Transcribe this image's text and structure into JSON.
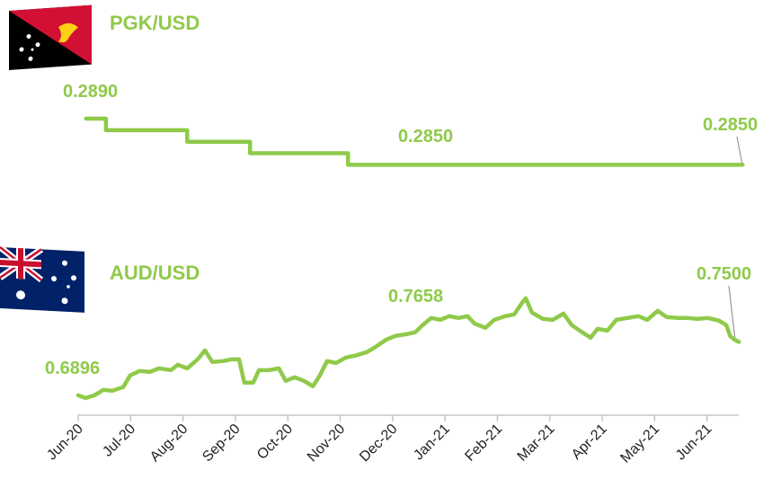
{
  "chart_data": [
    {
      "type": "line",
      "title": "PGK/USD",
      "xlim": [
        0,
        13
      ],
      "ylim": [
        0.2837,
        0.2915
      ],
      "annotations": [
        "0.2890",
        "0.2850",
        "0.2850"
      ],
      "series": [
        {
          "name": "PGK/USD",
          "color": "#8fca4a",
          "x": [
            0.15,
            0.53,
            0.53,
            2.08,
            2.08,
            3.28,
            3.28,
            5.15,
            5.15,
            12.68
          ],
          "values": [
            0.289,
            0.289,
            0.288,
            0.288,
            0.287,
            0.287,
            0.286,
            0.286,
            0.285,
            0.285
          ]
        }
      ]
    },
    {
      "type": "line",
      "title": "AUD/USD",
      "xlim": [
        0,
        13
      ],
      "ylim": [
        0.667,
        0.832
      ],
      "annotations": [
        "0.6896",
        "0.7658",
        "0.7500"
      ],
      "xticks": [
        {
          "value": 0,
          "label": "Jun-20"
        },
        {
          "value": 1,
          "label": "Jul-20"
        },
        {
          "value": 2,
          "label": "Aug-20"
        },
        {
          "value": 3,
          "label": "Sep-20"
        },
        {
          "value": 4,
          "label": "Oct-20"
        },
        {
          "value": 5,
          "label": "Nov-20"
        },
        {
          "value": 6,
          "label": "Dec-20"
        },
        {
          "value": 7,
          "label": "Jan-21"
        },
        {
          "value": 8,
          "label": "Feb-21"
        },
        {
          "value": 9,
          "label": "Mar-21"
        },
        {
          "value": 10,
          "label": "Apr-21"
        },
        {
          "value": 11,
          "label": "May-21"
        },
        {
          "value": 12,
          "label": "Jun-21"
        }
      ],
      "series": [
        {
          "name": "AUD/USD",
          "color": "#8fca4a",
          "x": [
            0.0,
            0.14,
            0.31,
            0.48,
            0.65,
            0.86,
            0.99,
            1.17,
            1.37,
            1.54,
            1.77,
            1.9,
            2.08,
            2.28,
            2.42,
            2.56,
            2.76,
            2.93,
            3.07,
            3.17,
            3.34,
            3.45,
            3.65,
            3.83,
            3.96,
            4.13,
            4.31,
            4.48,
            4.61,
            4.75,
            4.92,
            5.11,
            5.28,
            5.51,
            5.68,
            5.88,
            6.05,
            6.26,
            6.43,
            6.57,
            6.74,
            6.91,
            7.08,
            7.26,
            7.43,
            7.56,
            7.77,
            7.94,
            8.15,
            8.32,
            8.46,
            8.54,
            8.66,
            8.87,
            9.06,
            9.26,
            9.42,
            9.62,
            9.78,
            9.91,
            10.1,
            10.27,
            10.48,
            10.69,
            10.86,
            11.06,
            11.23,
            11.46,
            11.63,
            11.82,
            12.02,
            12.23,
            12.37,
            12.44,
            12.52,
            12.61
          ],
          "values": [
            0.6896,
            0.6865,
            0.6896,
            0.6957,
            0.6947,
            0.6988,
            0.712,
            0.7171,
            0.7161,
            0.7201,
            0.7181,
            0.7242,
            0.7201,
            0.7303,
            0.7405,
            0.7273,
            0.7283,
            0.7303,
            0.7303,
            0.7039,
            0.7039,
            0.7181,
            0.7181,
            0.7201,
            0.7059,
            0.71,
            0.7059,
            0.6998,
            0.712,
            0.7283,
            0.7262,
            0.7324,
            0.7344,
            0.7385,
            0.7446,
            0.7527,
            0.7568,
            0.7588,
            0.7609,
            0.769,
            0.7772,
            0.7751,
            0.7792,
            0.7772,
            0.7792,
            0.771,
            0.766,
            0.7751,
            0.7792,
            0.7812,
            0.7934,
            0.7995,
            0.7833,
            0.7761,
            0.7751,
            0.7822,
            0.769,
            0.7609,
            0.7548,
            0.7649,
            0.7629,
            0.7751,
            0.7772,
            0.7792,
            0.7751,
            0.7853,
            0.7782,
            0.7772,
            0.7772,
            0.7761,
            0.7772,
            0.7741,
            0.769,
            0.7568,
            0.7527,
            0.75
          ]
        }
      ]
    }
  ]
}
